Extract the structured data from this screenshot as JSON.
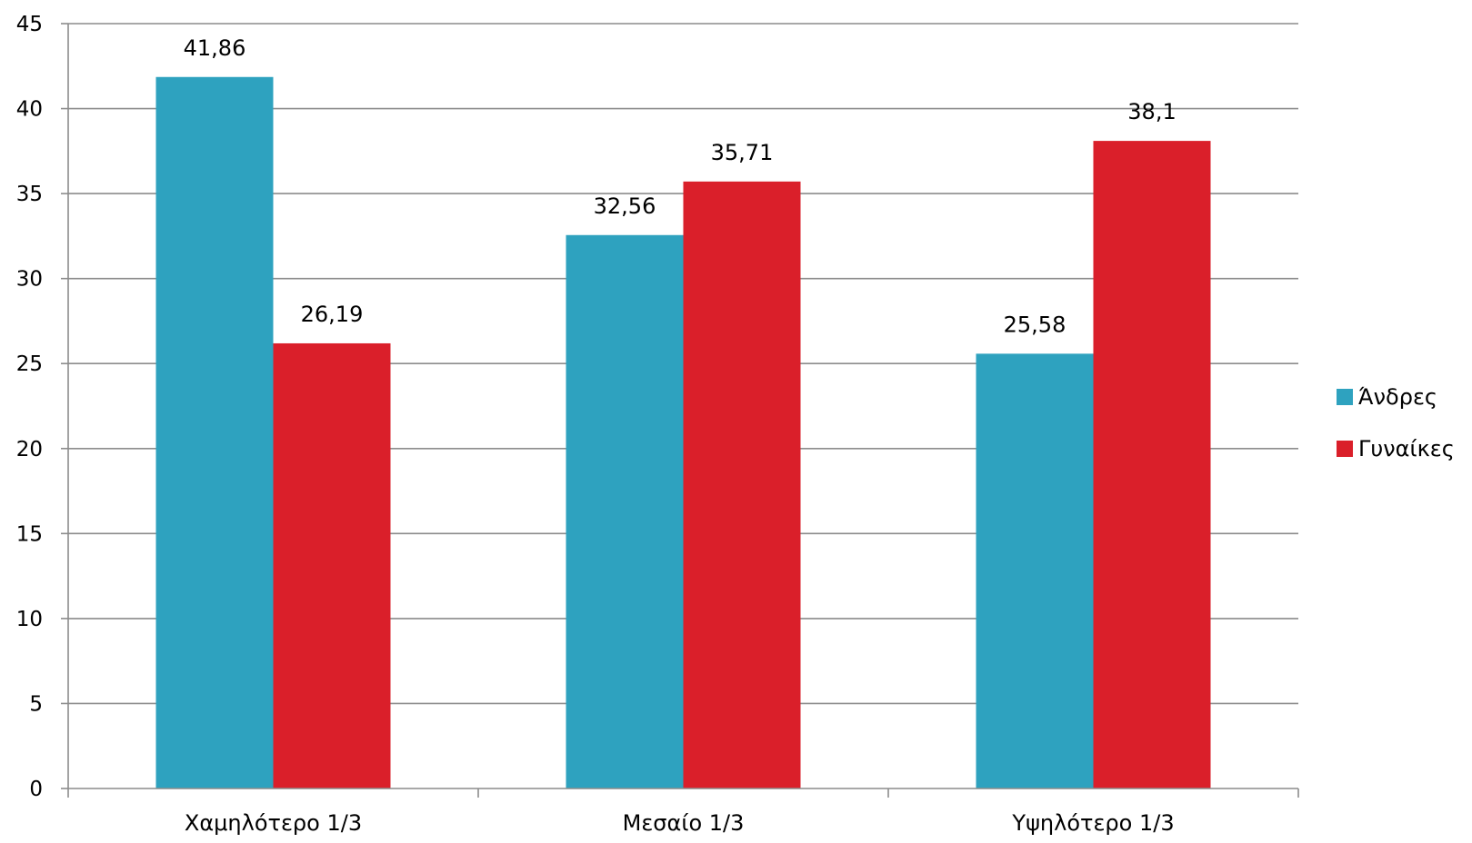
{
  "chart_data": {
    "type": "bar",
    "categories": [
      "Χαμηλότερο 1/3",
      "Μεσαίο 1/3",
      "Υψηλότερο 1/3"
    ],
    "series": [
      {
        "name": "Άνδρες",
        "color": "#2ea2bf",
        "values": [
          41.86,
          32.56,
          25.58
        ],
        "labels": [
          "41,86",
          "32,56",
          "25,58"
        ]
      },
      {
        "name": "Γυναίκες",
        "color": "#da1f2a",
        "values": [
          26.19,
          35.71,
          38.1
        ],
        "labels": [
          "26,19",
          "35,71",
          "38,1"
        ]
      }
    ],
    "ylim": [
      0,
      45
    ],
    "yticks": [
      "0",
      "5",
      "10",
      "15",
      "20",
      "25",
      "30",
      "35",
      "40",
      "45"
    ],
    "grid": true,
    "legend_position": "right"
  }
}
